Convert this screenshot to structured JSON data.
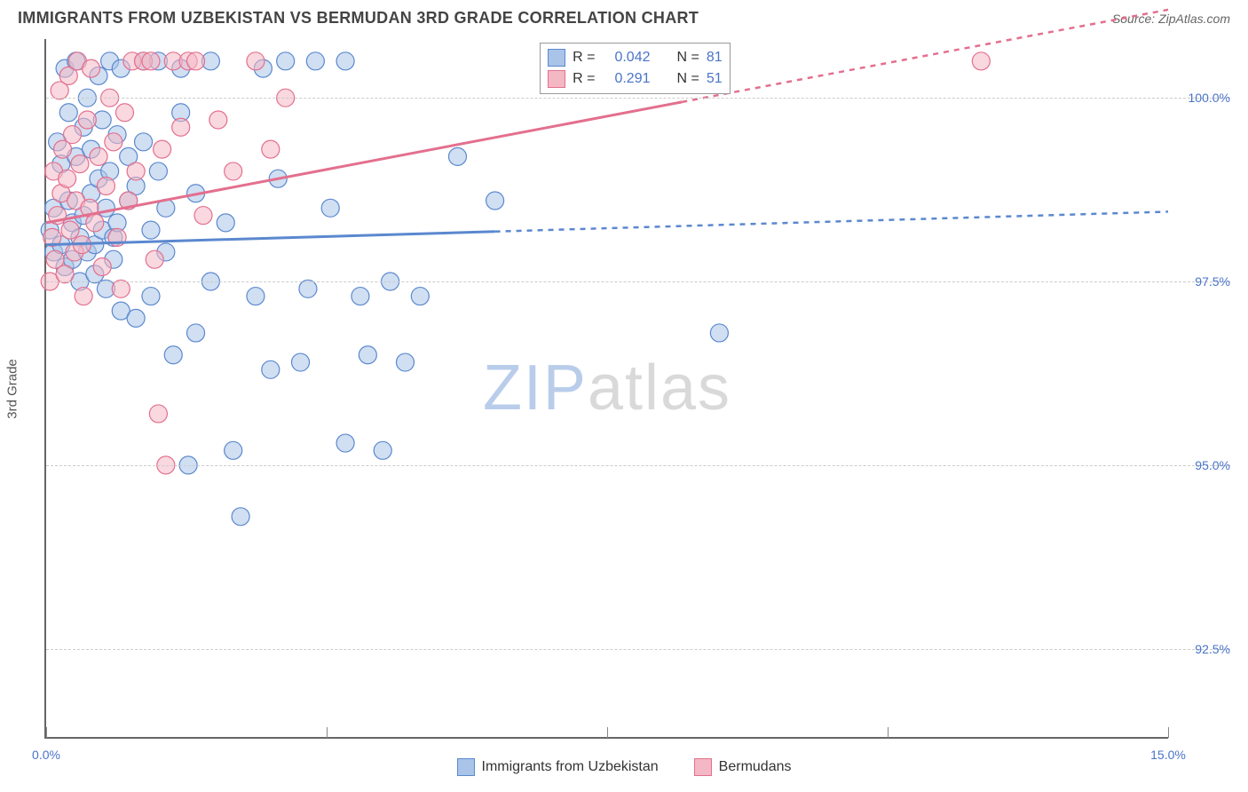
{
  "title": "IMMIGRANTS FROM UZBEKISTAN VS BERMUDAN 3RD GRADE CORRELATION CHART",
  "source": "Source: ZipAtlas.com",
  "y_axis_title": "3rd Grade",
  "watermark": {
    "zip": "ZIP",
    "atlas": "atlas"
  },
  "chart": {
    "type": "scatter",
    "xlim": [
      0,
      15
    ],
    "ylim": [
      91.3,
      100.8
    ],
    "x_ticks": [
      0,
      3.75,
      7.5,
      11.25,
      15
    ],
    "x_tick_labels_shown": {
      "0": "0.0%",
      "15": "15.0%"
    },
    "y_ticks": [
      92.5,
      95.0,
      97.5,
      100.0
    ],
    "y_tick_labels": [
      "92.5%",
      "95.0%",
      "97.5%",
      "100.0%"
    ],
    "grid_color": "#cccccc",
    "background_color": "#ffffff",
    "marker_radius": 10,
    "marker_opacity": 0.55,
    "series": [
      {
        "name": "Immigrants from Uzbekistan",
        "color_fill": "#a9c4e8",
        "color_stroke": "#5b88cf",
        "R": "0.042",
        "N": "81",
        "trend": {
          "y_at_x0": 98.0,
          "y_at_xmax": 98.45,
          "solid_until_x": 6.0,
          "dash": "6,6"
        },
        "points": [
          [
            0.05,
            98.2
          ],
          [
            0.1,
            97.9
          ],
          [
            0.1,
            98.5
          ],
          [
            0.15,
            99.4
          ],
          [
            0.2,
            98.0
          ],
          [
            0.2,
            99.1
          ],
          [
            0.25,
            97.7
          ],
          [
            0.25,
            100.4
          ],
          [
            0.3,
            98.6
          ],
          [
            0.3,
            99.8
          ],
          [
            0.35,
            97.8
          ],
          [
            0.35,
            98.3
          ],
          [
            0.4,
            99.2
          ],
          [
            0.4,
            100.5
          ],
          [
            0.45,
            98.1
          ],
          [
            0.45,
            97.5
          ],
          [
            0.5,
            99.6
          ],
          [
            0.5,
            98.4
          ],
          [
            0.55,
            100.0
          ],
          [
            0.55,
            97.9
          ],
          [
            0.6,
            98.7
          ],
          [
            0.6,
            99.3
          ],
          [
            0.65,
            97.6
          ],
          [
            0.65,
            98.0
          ],
          [
            0.7,
            100.3
          ],
          [
            0.7,
            98.9
          ],
          [
            0.75,
            98.2
          ],
          [
            0.75,
            99.7
          ],
          [
            0.8,
            97.4
          ],
          [
            0.8,
            98.5
          ],
          [
            0.85,
            100.5
          ],
          [
            0.85,
            99.0
          ],
          [
            0.9,
            98.1
          ],
          [
            0.9,
            97.8
          ],
          [
            0.95,
            99.5
          ],
          [
            0.95,
            98.3
          ],
          [
            1.0,
            97.1
          ],
          [
            1.0,
            100.4
          ],
          [
            1.1,
            98.6
          ],
          [
            1.1,
            99.2
          ],
          [
            1.2,
            97.0
          ],
          [
            1.2,
            98.8
          ],
          [
            1.3,
            100.5
          ],
          [
            1.3,
            99.4
          ],
          [
            1.4,
            97.3
          ],
          [
            1.4,
            98.2
          ],
          [
            1.5,
            100.5
          ],
          [
            1.5,
            99.0
          ],
          [
            1.6,
            97.9
          ],
          [
            1.6,
            98.5
          ],
          [
            1.7,
            96.5
          ],
          [
            1.8,
            99.8
          ],
          [
            1.8,
            100.4
          ],
          [
            1.9,
            95.0
          ],
          [
            2.0,
            98.7
          ],
          [
            2.0,
            96.8
          ],
          [
            2.2,
            100.5
          ],
          [
            2.2,
            97.5
          ],
          [
            2.4,
            98.3
          ],
          [
            2.5,
            95.2
          ],
          [
            2.6,
            94.3
          ],
          [
            2.8,
            97.3
          ],
          [
            2.9,
            100.4
          ],
          [
            3.0,
            96.3
          ],
          [
            3.1,
            98.9
          ],
          [
            3.2,
            100.5
          ],
          [
            3.4,
            96.4
          ],
          [
            3.5,
            97.4
          ],
          [
            3.6,
            100.5
          ],
          [
            3.8,
            98.5
          ],
          [
            4.0,
            95.3
          ],
          [
            4.0,
            100.5
          ],
          [
            4.2,
            97.3
          ],
          [
            4.3,
            96.5
          ],
          [
            4.5,
            95.2
          ],
          [
            4.6,
            97.5
          ],
          [
            4.8,
            96.4
          ],
          [
            5.0,
            97.3
          ],
          [
            5.5,
            99.2
          ],
          [
            6.0,
            98.6
          ],
          [
            9.0,
            96.8
          ]
        ]
      },
      {
        "name": "Bermudans",
        "color_fill": "#f4b8c5",
        "color_stroke": "#e36f8e",
        "R": "0.291",
        "N": "51",
        "trend": {
          "y_at_x0": 98.3,
          "y_at_xmax": 101.2,
          "solid_until_x": 8.5,
          "dash": ""
        },
        "points": [
          [
            0.05,
            97.5
          ],
          [
            0.08,
            98.1
          ],
          [
            0.1,
            99.0
          ],
          [
            0.12,
            97.8
          ],
          [
            0.15,
            98.4
          ],
          [
            0.18,
            100.1
          ],
          [
            0.2,
            98.7
          ],
          [
            0.22,
            99.3
          ],
          [
            0.25,
            97.6
          ],
          [
            0.28,
            98.9
          ],
          [
            0.3,
            100.3
          ],
          [
            0.32,
            98.2
          ],
          [
            0.35,
            99.5
          ],
          [
            0.38,
            97.9
          ],
          [
            0.4,
            98.6
          ],
          [
            0.42,
            100.5
          ],
          [
            0.45,
            99.1
          ],
          [
            0.48,
            98.0
          ],
          [
            0.5,
            97.3
          ],
          [
            0.55,
            99.7
          ],
          [
            0.58,
            98.5
          ],
          [
            0.6,
            100.4
          ],
          [
            0.65,
            98.3
          ],
          [
            0.7,
            99.2
          ],
          [
            0.75,
            97.7
          ],
          [
            0.8,
            98.8
          ],
          [
            0.85,
            100.0
          ],
          [
            0.9,
            99.4
          ],
          [
            0.95,
            98.1
          ],
          [
            1.0,
            97.4
          ],
          [
            1.05,
            99.8
          ],
          [
            1.1,
            98.6
          ],
          [
            1.15,
            100.5
          ],
          [
            1.2,
            99.0
          ],
          [
            1.3,
            100.5
          ],
          [
            1.4,
            100.5
          ],
          [
            1.45,
            97.8
          ],
          [
            1.5,
            95.7
          ],
          [
            1.55,
            99.3
          ],
          [
            1.6,
            95.0
          ],
          [
            1.7,
            100.5
          ],
          [
            1.8,
            99.6
          ],
          [
            1.9,
            100.5
          ],
          [
            2.0,
            100.5
          ],
          [
            2.1,
            98.4
          ],
          [
            2.3,
            99.7
          ],
          [
            2.5,
            99.0
          ],
          [
            2.8,
            100.5
          ],
          [
            3.0,
            99.3
          ],
          [
            3.2,
            100.0
          ],
          [
            12.5,
            100.5
          ]
        ]
      }
    ]
  },
  "legend_stats": {
    "rows": [
      {
        "swatch_fill": "#a9c4e8",
        "swatch_stroke": "#5b88cf",
        "r_label": "R =",
        "r_val": "0.042",
        "n_label": "N =",
        "n_val": "81"
      },
      {
        "swatch_fill": "#f4b8c5",
        "swatch_stroke": "#e36f8e",
        "r_label": "R =",
        "r_val": "0.291",
        "n_label": "N =",
        "n_val": "51"
      }
    ]
  },
  "bottom_legend": [
    {
      "swatch_fill": "#a9c4e8",
      "swatch_stroke": "#5b88cf",
      "label": "Immigrants from Uzbekistan"
    },
    {
      "swatch_fill": "#f4b8c5",
      "swatch_stroke": "#e36f8e",
      "label": "Bermudans"
    }
  ]
}
